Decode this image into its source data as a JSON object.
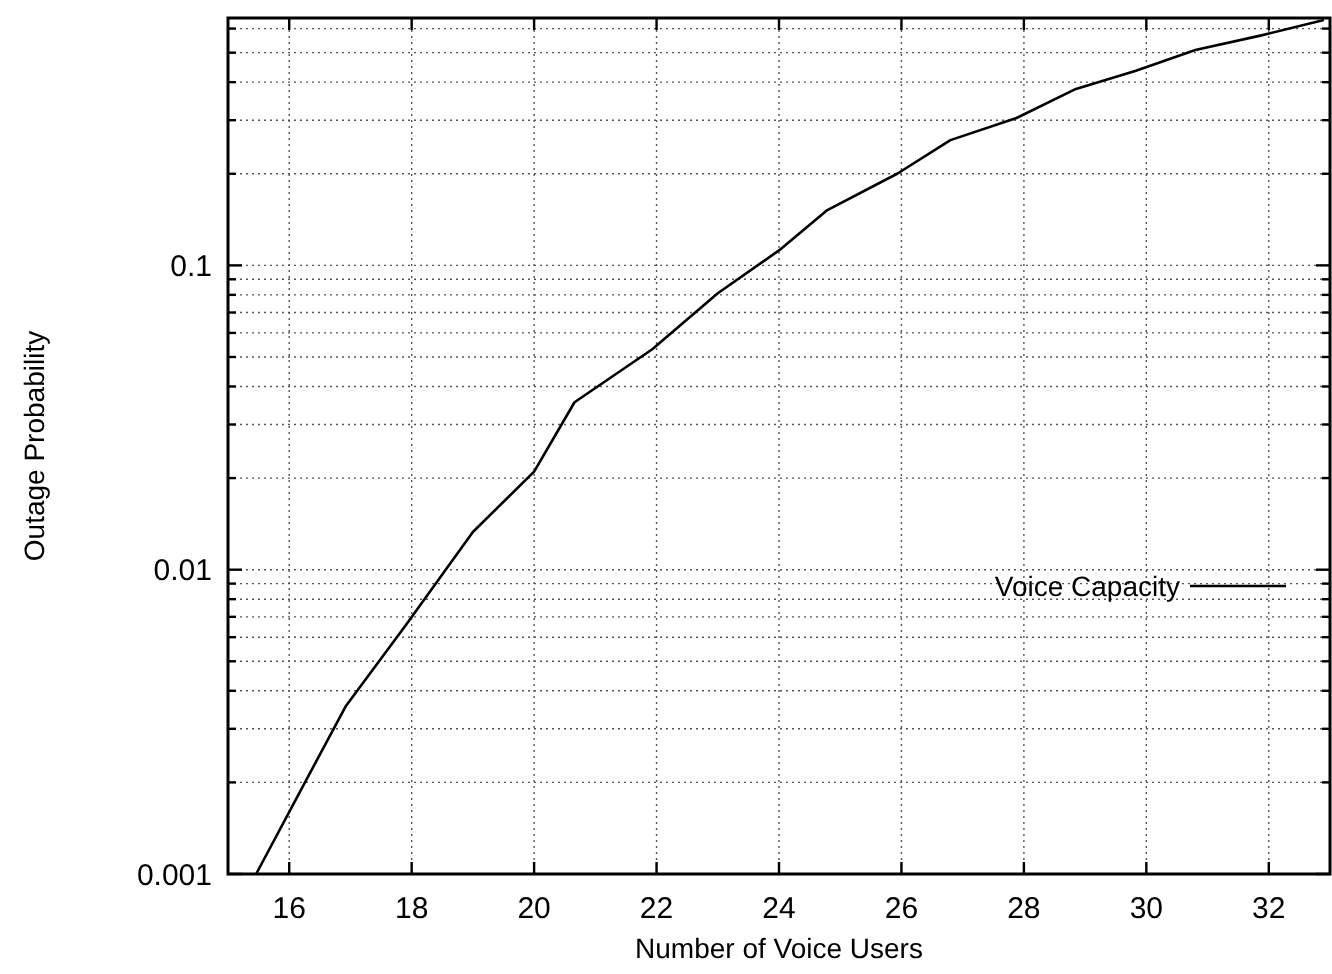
{
  "chart_data": {
    "type": "line",
    "xlabel": "Number of Voice Users",
    "ylabel": "Outage Probability",
    "log": "y",
    "grid": true,
    "legend": "right",
    "xlim": [
      15,
      33
    ],
    "xticks": [
      16,
      18,
      20,
      22,
      24,
      26,
      28,
      30,
      32
    ],
    "ylim": [
      0.001,
      0.65
    ],
    "yticks": [
      0.001,
      {
        "value": 0.002,
        "label": null
      },
      {
        "value": 0.003,
        "label": null
      },
      {
        "value": 0.004,
        "label": null
      },
      {
        "value": 0.005,
        "label": null
      },
      {
        "value": 0.006,
        "label": null
      },
      {
        "value": 0.007,
        "label": null
      },
      {
        "value": 0.008,
        "label": null
      },
      {
        "value": 0.009,
        "label": null
      },
      0.01,
      {
        "value": 0.02,
        "label": null
      },
      {
        "value": 0.03,
        "label": null
      },
      {
        "value": 0.04,
        "label": null
      },
      {
        "value": 0.05,
        "label": null
      },
      {
        "value": 0.06,
        "label": null
      },
      {
        "value": 0.07,
        "label": null
      },
      {
        "value": 0.08,
        "label": null
      },
      {
        "value": 0.09,
        "label": null
      },
      0.1,
      {
        "value": 0.2,
        "label": null
      },
      {
        "value": 0.3,
        "label": null
      },
      {
        "value": 0.4,
        "label": null
      },
      {
        "value": 0.5,
        "label": null
      },
      {
        "value": 0.6,
        "label": null
      }
    ],
    "series": [
      {
        "name": "Voice Capacity",
        "color": "#000000",
        "x": [
          15.46,
          16.24,
          16.92,
          17.9,
          19.0,
          20.0,
          20.66,
          21.93,
          23.0,
          24.0,
          24.79,
          25.93,
          26.8,
          27.88,
          28.85,
          29.83,
          30.8,
          31.88,
          32.9
        ],
        "values": [
          0.001,
          0.00197,
          0.00355,
          0.00656,
          0.0133,
          0.021,
          0.0355,
          0.053,
          0.081,
          0.112,
          0.152,
          0.2,
          0.258,
          0.305,
          0.38,
          0.436,
          0.51,
          0.57,
          0.64
        ]
      }
    ]
  }
}
